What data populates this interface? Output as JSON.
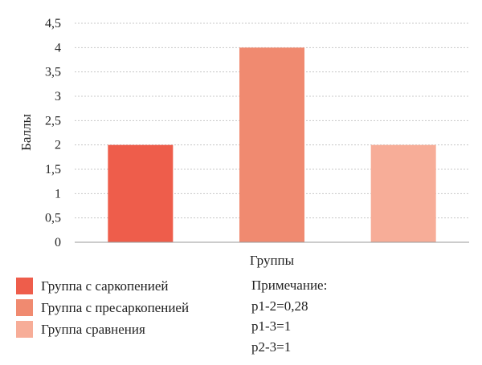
{
  "chart_data": {
    "type": "bar",
    "ylabel": "Баллы",
    "xlabel": "Группы",
    "ylim": [
      0,
      4.5
    ],
    "yticks": [
      "0",
      "0,5",
      "1",
      "1,5",
      "2",
      "2,5",
      "3",
      "3,5",
      "4",
      "4,5"
    ],
    "grid": true,
    "series": [
      {
        "name": "Группа с саркопенией",
        "value": 2,
        "color": "#ee5d4b"
      },
      {
        "name": "Группа с пресаркопенией",
        "value": 4,
        "color": "#f08a70"
      },
      {
        "name": "Группа сравнения",
        "value": 2,
        "color": "#f7ad98"
      }
    ],
    "legend_position": "bottom-left"
  },
  "note": {
    "title": "Примечание:",
    "lines": [
      "p1-2=0,28",
      "p1-3=1",
      "p2-3=1"
    ]
  }
}
